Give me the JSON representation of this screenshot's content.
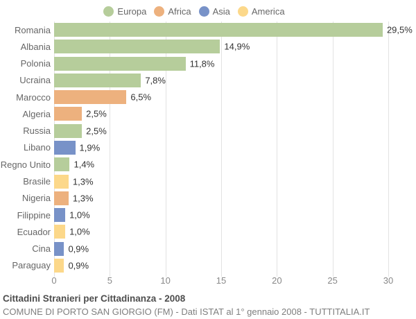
{
  "legend": {
    "items": [
      {
        "label": "Europa",
        "color": "#b6cd9b"
      },
      {
        "label": "Africa",
        "color": "#edb17e"
      },
      {
        "label": "Asia",
        "color": "#7892c8"
      },
      {
        "label": "America",
        "color": "#fcd88a"
      }
    ]
  },
  "chart_data": {
    "type": "bar",
    "orientation": "horizontal",
    "categories": [
      "Romania",
      "Albania",
      "Polonia",
      "Ucraina",
      "Marocco",
      "Algeria",
      "Russia",
      "Libano",
      "Regno Unito",
      "Brasile",
      "Nigeria",
      "Filippine",
      "Ecuador",
      "Cina",
      "Paraguay"
    ],
    "values": [
      29.5,
      14.9,
      11.8,
      7.8,
      6.5,
      2.5,
      2.5,
      1.9,
      1.4,
      1.3,
      1.3,
      1.0,
      1.0,
      0.9,
      0.9
    ],
    "value_labels": [
      "29,5%",
      "14,9%",
      "11,8%",
      "7,8%",
      "6,5%",
      "2,5%",
      "2,5%",
      "1,9%",
      "1,4%",
      "1,3%",
      "1,3%",
      "1,0%",
      "1,0%",
      "0,9%",
      "0,9%"
    ],
    "groups": [
      "Europa",
      "Europa",
      "Europa",
      "Europa",
      "Africa",
      "Africa",
      "Europa",
      "Asia",
      "Europa",
      "America",
      "Africa",
      "Asia",
      "America",
      "Asia",
      "America"
    ],
    "series_colors": {
      "Europa": "#b6cd9b",
      "Africa": "#edb17e",
      "Asia": "#7892c8",
      "America": "#fcd88a"
    },
    "xlim": [
      0,
      30
    ],
    "xticks": [
      "0",
      "5",
      "10",
      "15",
      "20",
      "25",
      "30"
    ],
    "grid": "vertical-only",
    "legend_position": "top",
    "title": "Cittadini Stranieri per Cittadinanza - 2008",
    "subtitle": "COMUNE DI PORTO SAN GIORGIO (FM) - Dati ISTAT al 1° gennaio 2008 - TUTTITALIA.IT"
  },
  "footer": {
    "title": "Cittadini Stranieri per Cittadinanza - 2008",
    "subtitle": "COMUNE DI PORTO SAN GIORGIO (FM) - Dati ISTAT al 1° gennaio 2008 - TUTTITALIA.IT"
  }
}
